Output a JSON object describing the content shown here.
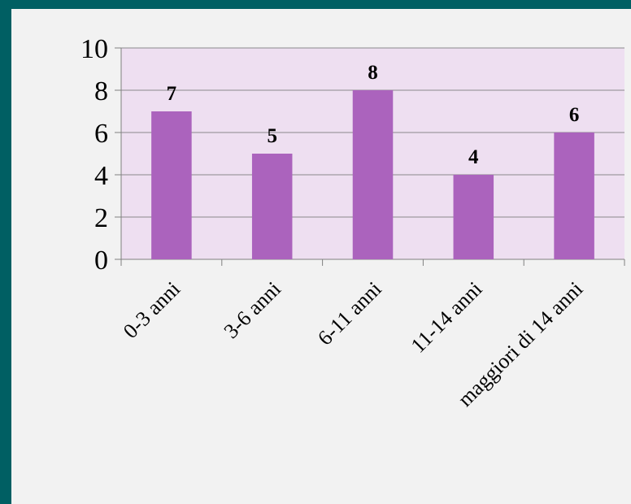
{
  "chart_data": {
    "type": "bar",
    "categories": [
      "0-3 anni",
      "3-6 anni",
      "6-11 anni",
      "11-14 anni",
      "maggiori di 14 anni"
    ],
    "values": [
      7,
      5,
      8,
      4,
      6
    ],
    "data_labels": [
      "7",
      "5",
      "8",
      "4",
      "6"
    ],
    "title": "",
    "xlabel": "",
    "ylabel": "",
    "ylim": [
      0,
      10
    ],
    "y_ticks": [
      0,
      2,
      4,
      6,
      8,
      10
    ],
    "y_tick_labels": [
      "0",
      "2",
      "4",
      "6",
      "8",
      "10"
    ],
    "grid": true,
    "legend": false,
    "colors": {
      "bar": "#ab63bd",
      "plot_background": "#eedff1",
      "grid": "#8a8a8a",
      "axis": "#808080",
      "page_background": "#005f63",
      "panel_background": "#f2f2f2"
    }
  }
}
